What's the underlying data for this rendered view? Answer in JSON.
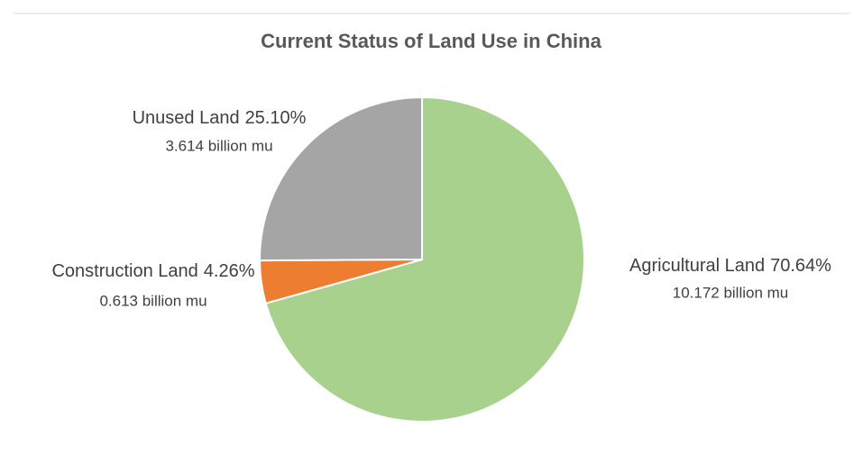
{
  "chart_data": {
    "type": "pie",
    "title": "Current Status of Land Use in China",
    "categories": [
      "Agricultural Land",
      "Construction Land",
      "Unused Land"
    ],
    "values": [
      70.64,
      4.26,
      25.1
    ],
    "value_labels": [
      "70.64%",
      "4.26%",
      "25.10%"
    ],
    "amounts": [
      "10.172 billion mu",
      "0.613 billion mu",
      "3.614 billion mu"
    ],
    "colors": [
      "#a9d18e",
      "#ed7d31",
      "#a5a5a5"
    ]
  }
}
